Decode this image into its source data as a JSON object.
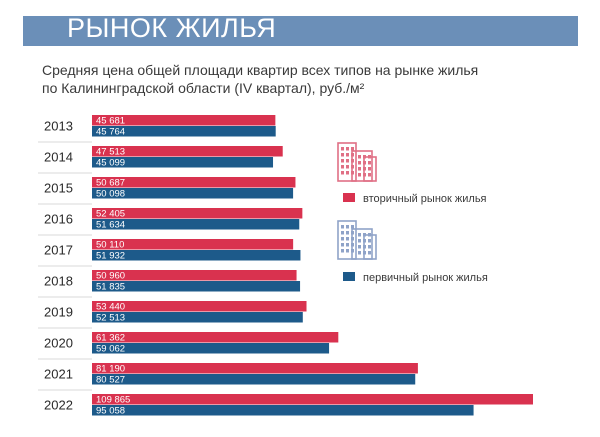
{
  "header": {
    "title": "РЫНОК ЖИЛЬЯ",
    "subtitle_line1": "Средняя цена общей площади квартир всех типов на рынке жилья",
    "subtitle_line2": "по Калининградской области (IV квартал), руб./м²"
  },
  "colors": {
    "banner": "#6b8fb8",
    "secondary": "#d9324f",
    "primary": "#1d5a8a",
    "icon_red": "#e07085",
    "icon_blue": "#8fa3c8"
  },
  "chart_data": {
    "type": "bar",
    "orientation": "horizontal",
    "categories": [
      "2013",
      "2014",
      "2015",
      "2016",
      "2017",
      "2018",
      "2019",
      "2020",
      "2021",
      "2022"
    ],
    "series": [
      {
        "name": "вторичный рынок жилья",
        "color": "#d9324f",
        "values": [
          45681,
          47513,
          50687,
          52405,
          50110,
          50960,
          53440,
          61362,
          81190,
          109865
        ],
        "labels": [
          "45 681",
          "47 513",
          "50 687",
          "52 405",
          "50 110",
          "50 960",
          "53 440",
          "61 362",
          "81 190",
          "109 865"
        ]
      },
      {
        "name": "первичный рынок жилья",
        "color": "#1d5a8a",
        "values": [
          45764,
          45099,
          50098,
          51634,
          51932,
          51835,
          52513,
          59062,
          80527,
          95058
        ],
        "labels": [
          "45 764",
          "45 099",
          "50 098",
          "51 634",
          "51 932",
          "51 835",
          "52 513",
          "59 062",
          "80 527",
          "95 058"
        ]
      }
    ],
    "legend": [
      "вторичный рынок жилья",
      "первичный рынок жилья"
    ],
    "legend_position": "right",
    "xlim": [
      0,
      109865
    ],
    "grid": false
  }
}
